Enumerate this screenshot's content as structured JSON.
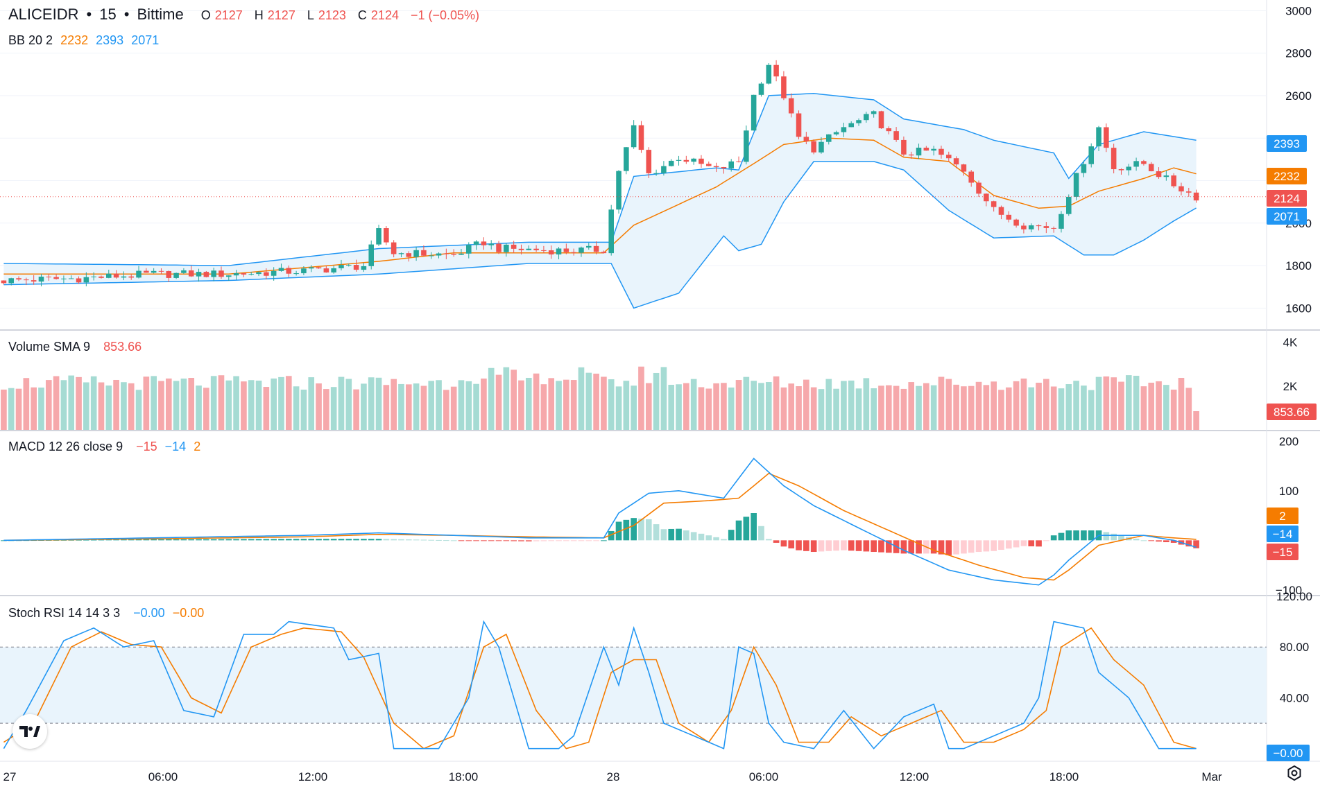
{
  "header": {
    "symbol": "ALICEIDR",
    "interval": "15",
    "exchange": "Bittime",
    "separator": "•",
    "open_label": "O",
    "open": "2127",
    "high_label": "H",
    "high": "2127",
    "low_label": "L",
    "low": "2123",
    "close_label": "C",
    "close": "2124",
    "change": "−1 (−0.05%)"
  },
  "indicators": {
    "bb": {
      "label": "BB 20 2",
      "basis": "2232",
      "upper": "2393",
      "lower": "2071"
    },
    "volume": {
      "label": "Volume SMA 9",
      "value": "853.66"
    },
    "macd": {
      "label": "MACD 12 26 close 9",
      "hist": "−15",
      "macd": "−14",
      "signal": "2"
    },
    "stoch": {
      "label": "Stoch RSI 14 14 3 3",
      "k": "−0.00",
      "d": "−0.00"
    }
  },
  "colors": {
    "up": "#26a69a",
    "down": "#ef5350",
    "vol_up": "#a5dbd3",
    "vol_down": "#f6a8ab",
    "bb_line": "#2196f3",
    "bb_fill": "#e9f4fc",
    "basis": "#f57c00",
    "macd": "#2196f3",
    "signal": "#f57c00",
    "hist_up_strong": "#26a69a",
    "hist_up_weak": "#b2dfdb",
    "hist_down_strong": "#ef5350",
    "hist_down_weak": "#ffcdd2",
    "grid": "#f0f3fa",
    "text": "#131722"
  },
  "chart_data": [
    {
      "type": "candlestick",
      "pane": "price",
      "title": "ALICEIDR · 15 · Bittime",
      "ylim": [
        1500,
        3050
      ],
      "y_ticks": [
        "1600",
        "1800",
        "2000",
        "2600",
        "2800",
        "3000"
      ],
      "x_ticks": [
        "27",
        "06:00",
        "12:00",
        "18:00",
        "28",
        "06:00",
        "12:00",
        "18:00",
        "Mar"
      ],
      "n_bars": 160,
      "anchors_close": [
        [
          0,
          1730
        ],
        [
          10,
          1740
        ],
        [
          20,
          1760
        ],
        [
          30,
          1760
        ],
        [
          40,
          1775
        ],
        [
          48,
          1800
        ],
        [
          50,
          1960
        ],
        [
          52,
          1860
        ],
        [
          60,
          1850
        ],
        [
          64,
          1910
        ],
        [
          66,
          1880
        ],
        [
          75,
          1870
        ],
        [
          80,
          1875
        ],
        [
          82,
          2250
        ],
        [
          84,
          2450
        ],
        [
          86,
          2230
        ],
        [
          90,
          2310
        ],
        [
          95,
          2250
        ],
        [
          98,
          2290
        ],
        [
          100,
          2600
        ],
        [
          102,
          2750
        ],
        [
          104,
          2600
        ],
        [
          106,
          2400
        ],
        [
          108,
          2350
        ],
        [
          112,
          2450
        ],
        [
          116,
          2510
        ],
        [
          120,
          2330
        ],
        [
          124,
          2340
        ],
        [
          128,
          2250
        ],
        [
          132,
          2060
        ],
        [
          136,
          1990
        ],
        [
          140,
          1980
        ],
        [
          142,
          2140
        ],
        [
          146,
          2450
        ],
        [
          148,
          2260
        ],
        [
          152,
          2280
        ],
        [
          156,
          2180
        ],
        [
          159,
          2124
        ]
      ],
      "bb_upper_anchors": [
        [
          0,
          1810
        ],
        [
          30,
          1800
        ],
        [
          50,
          1880
        ],
        [
          70,
          1910
        ],
        [
          81,
          1910
        ],
        [
          84,
          2220
        ],
        [
          95,
          2260
        ],
        [
          98,
          2250
        ],
        [
          102,
          2600
        ],
        [
          108,
          2610
        ],
        [
          116,
          2580
        ],
        [
          120,
          2490
        ],
        [
          128,
          2440
        ],
        [
          132,
          2390
        ],
        [
          140,
          2330
        ],
        [
          142,
          2210
        ],
        [
          146,
          2370
        ],
        [
          152,
          2430
        ],
        [
          159,
          2390
        ]
      ],
      "bb_basis_anchors": [
        [
          0,
          1760
        ],
        [
          30,
          1760
        ],
        [
          50,
          1820
        ],
        [
          60,
          1860
        ],
        [
          80,
          1860
        ],
        [
          84,
          1990
        ],
        [
          95,
          2170
        ],
        [
          100,
          2280
        ],
        [
          104,
          2370
        ],
        [
          110,
          2400
        ],
        [
          116,
          2390
        ],
        [
          120,
          2310
        ],
        [
          126,
          2290
        ],
        [
          132,
          2130
        ],
        [
          138,
          2070
        ],
        [
          142,
          2080
        ],
        [
          146,
          2150
        ],
        [
          152,
          2210
        ],
        [
          156,
          2260
        ],
        [
          159,
          2232
        ]
      ],
      "bb_lower_anchors": [
        [
          0,
          1710
        ],
        [
          30,
          1730
        ],
        [
          50,
          1760
        ],
        [
          70,
          1810
        ],
        [
          81,
          1810
        ],
        [
          84,
          1600
        ],
        [
          90,
          1670
        ],
        [
          96,
          1940
        ],
        [
          98,
          1870
        ],
        [
          101,
          1900
        ],
        [
          104,
          2100
        ],
        [
          108,
          2290
        ],
        [
          116,
          2290
        ],
        [
          120,
          2250
        ],
        [
          126,
          2060
        ],
        [
          132,
          1930
        ],
        [
          140,
          1940
        ],
        [
          144,
          1850
        ],
        [
          148,
          1850
        ],
        [
          152,
          1920
        ],
        [
          156,
          2010
        ],
        [
          159,
          2071
        ]
      ],
      "last_labels": {
        "upper": "2393",
        "basis": "2232",
        "close": "2124",
        "lower": "2071"
      }
    },
    {
      "type": "bar",
      "pane": "volume",
      "title": "Volume SMA 9",
      "ylim": [
        0,
        4400
      ],
      "y_ticks": [
        "2K",
        "4K"
      ],
      "series": [
        {
          "name": "volume",
          "values_hint": "approx 1800–2600 per bar, last bar ~853.66"
        }
      ],
      "value_label": "853.66"
    },
    {
      "type": "line",
      "pane": "macd",
      "title": "MACD 12 26 close 9",
      "ylim": [
        -110,
        220
      ],
      "y_ticks": [
        "200",
        "100",
        "−100"
      ],
      "macd_anchors": [
        [
          0,
          0
        ],
        [
          20,
          5
        ],
        [
          40,
          10
        ],
        [
          50,
          15
        ],
        [
          60,
          10
        ],
        [
          70,
          5
        ],
        [
          80,
          5
        ],
        [
          82,
          55
        ],
        [
          86,
          95
        ],
        [
          90,
          100
        ],
        [
          96,
          85
        ],
        [
          100,
          165
        ],
        [
          104,
          110
        ],
        [
          108,
          70
        ],
        [
          112,
          40
        ],
        [
          116,
          10
        ],
        [
          120,
          -20
        ],
        [
          126,
          -60
        ],
        [
          132,
          -80
        ],
        [
          138,
          -90
        ],
        [
          140,
          -70
        ],
        [
          142,
          -40
        ],
        [
          146,
          10
        ],
        [
          152,
          10
        ],
        [
          156,
          0
        ],
        [
          159,
          -14
        ]
      ],
      "signal_anchors": [
        [
          0,
          0
        ],
        [
          20,
          3
        ],
        [
          40,
          7
        ],
        [
          50,
          12
        ],
        [
          60,
          10
        ],
        [
          70,
          7
        ],
        [
          80,
          5
        ],
        [
          84,
          30
        ],
        [
          88,
          75
        ],
        [
          94,
          80
        ],
        [
          98,
          85
        ],
        [
          102,
          135
        ],
        [
          106,
          110
        ],
        [
          112,
          60
        ],
        [
          118,
          20
        ],
        [
          124,
          -20
        ],
        [
          130,
          -50
        ],
        [
          136,
          -75
        ],
        [
          140,
          -80
        ],
        [
          142,
          -60
        ],
        [
          146,
          -10
        ],
        [
          152,
          10
        ],
        [
          156,
          5
        ],
        [
          159,
          2
        ]
      ],
      "labels": {
        "signal": "2",
        "macd": "−14",
        "hist": "−15"
      }
    },
    {
      "type": "line",
      "pane": "stoch_rsi",
      "title": "Stoch RSI 14 14 3 3",
      "ylim": [
        -10,
        120
      ],
      "y_ticks": [
        "120.00",
        "80.00",
        "40.00"
      ],
      "bands": [
        80,
        20
      ],
      "k_anchors": [
        [
          0,
          0
        ],
        [
          3,
          30
        ],
        [
          8,
          85
        ],
        [
          12,
          95
        ],
        [
          16,
          80
        ],
        [
          20,
          85
        ],
        [
          24,
          30
        ],
        [
          28,
          25
        ],
        [
          32,
          90
        ],
        [
          36,
          90
        ],
        [
          38,
          100
        ],
        [
          44,
          95
        ],
        [
          46,
          70
        ],
        [
          50,
          75
        ],
        [
          52,
          0
        ],
        [
          58,
          0
        ],
        [
          62,
          40
        ],
        [
          64,
          100
        ],
        [
          66,
          80
        ],
        [
          70,
          0
        ],
        [
          74,
          0
        ],
        [
          76,
          10
        ],
        [
          80,
          80
        ],
        [
          82,
          50
        ],
        [
          84,
          95
        ],
        [
          86,
          60
        ],
        [
          88,
          20
        ],
        [
          92,
          10
        ],
        [
          96,
          0
        ],
        [
          98,
          80
        ],
        [
          100,
          75
        ],
        [
          102,
          20
        ],
        [
          104,
          5
        ],
        [
          108,
          0
        ],
        [
          112,
          30
        ],
        [
          116,
          0
        ],
        [
          120,
          25
        ],
        [
          124,
          35
        ],
        [
          126,
          0
        ],
        [
          128,
          0
        ],
        [
          132,
          10
        ],
        [
          136,
          20
        ],
        [
          138,
          40
        ],
        [
          140,
          100
        ],
        [
          144,
          95
        ],
        [
          146,
          60
        ],
        [
          150,
          40
        ],
        [
          154,
          0
        ],
        [
          159,
          0
        ]
      ],
      "d_anchors": [
        [
          0,
          5
        ],
        [
          4,
          20
        ],
        [
          9,
          80
        ],
        [
          13,
          92
        ],
        [
          17,
          82
        ],
        [
          21,
          80
        ],
        [
          25,
          40
        ],
        [
          29,
          28
        ],
        [
          33,
          80
        ],
        [
          37,
          90
        ],
        [
          40,
          95
        ],
        [
          45,
          92
        ],
        [
          48,
          72
        ],
        [
          52,
          20
        ],
        [
          56,
          0
        ],
        [
          60,
          10
        ],
        [
          64,
          80
        ],
        [
          67,
          90
        ],
        [
          71,
          30
        ],
        [
          75,
          0
        ],
        [
          78,
          5
        ],
        [
          81,
          60
        ],
        [
          84,
          70
        ],
        [
          87,
          70
        ],
        [
          90,
          20
        ],
        [
          94,
          5
        ],
        [
          97,
          30
        ],
        [
          100,
          80
        ],
        [
          103,
          50
        ],
        [
          106,
          5
        ],
        [
          110,
          5
        ],
        [
          113,
          25
        ],
        [
          117,
          10
        ],
        [
          121,
          20
        ],
        [
          125,
          30
        ],
        [
          128,
          5
        ],
        [
          132,
          5
        ],
        [
          136,
          15
        ],
        [
          139,
          30
        ],
        [
          141,
          80
        ],
        [
          145,
          95
        ],
        [
          148,
          70
        ],
        [
          152,
          50
        ],
        [
          156,
          5
        ],
        [
          159,
          0
        ]
      ],
      "labels": {
        "value": "−0.00"
      }
    }
  ]
}
